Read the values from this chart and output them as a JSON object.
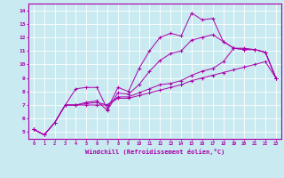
{
  "title": "",
  "xlabel": "Windchill (Refroidissement éolien,°C)",
  "ylabel": "",
  "bg_color": "#c8eaf0",
  "line_color": "#aa00aa",
  "grid_color": "#ffffff",
  "xlim": [
    -0.5,
    23.5
  ],
  "ylim": [
    4.5,
    14.5
  ],
  "xticks": [
    0,
    1,
    2,
    3,
    4,
    5,
    6,
    7,
    8,
    9,
    10,
    11,
    12,
    13,
    14,
    15,
    16,
    17,
    18,
    19,
    20,
    21,
    22,
    23
  ],
  "yticks": [
    5,
    6,
    7,
    8,
    9,
    10,
    11,
    12,
    13,
    14
  ],
  "series": [
    [
      5.2,
      4.8,
      5.7,
      7.0,
      8.2,
      8.3,
      8.3,
      6.7,
      8.3,
      8.0,
      9.7,
      11.0,
      12.0,
      12.3,
      12.1,
      13.8,
      13.3,
      13.4,
      11.7,
      11.2,
      11.1,
      11.1,
      10.9,
      9.0
    ],
    [
      5.2,
      4.8,
      5.7,
      7.0,
      7.0,
      7.0,
      7.0,
      7.0,
      7.5,
      7.5,
      7.7,
      7.9,
      8.1,
      8.3,
      8.5,
      8.8,
      9.0,
      9.2,
      9.4,
      9.6,
      9.8,
      10.0,
      10.2,
      9.0
    ],
    [
      5.2,
      4.8,
      5.7,
      7.0,
      7.0,
      7.1,
      7.2,
      7.0,
      7.6,
      7.6,
      7.9,
      8.2,
      8.5,
      8.6,
      8.8,
      9.2,
      9.5,
      9.7,
      10.2,
      11.2,
      11.2,
      11.1,
      10.9,
      9.0
    ],
    [
      5.2,
      4.8,
      5.7,
      7.0,
      7.0,
      7.2,
      7.3,
      6.6,
      7.9,
      7.8,
      8.5,
      9.5,
      10.3,
      10.8,
      11.0,
      11.8,
      12.0,
      12.2,
      11.7,
      11.2,
      11.1,
      11.1,
      10.9,
      9.0
    ]
  ]
}
